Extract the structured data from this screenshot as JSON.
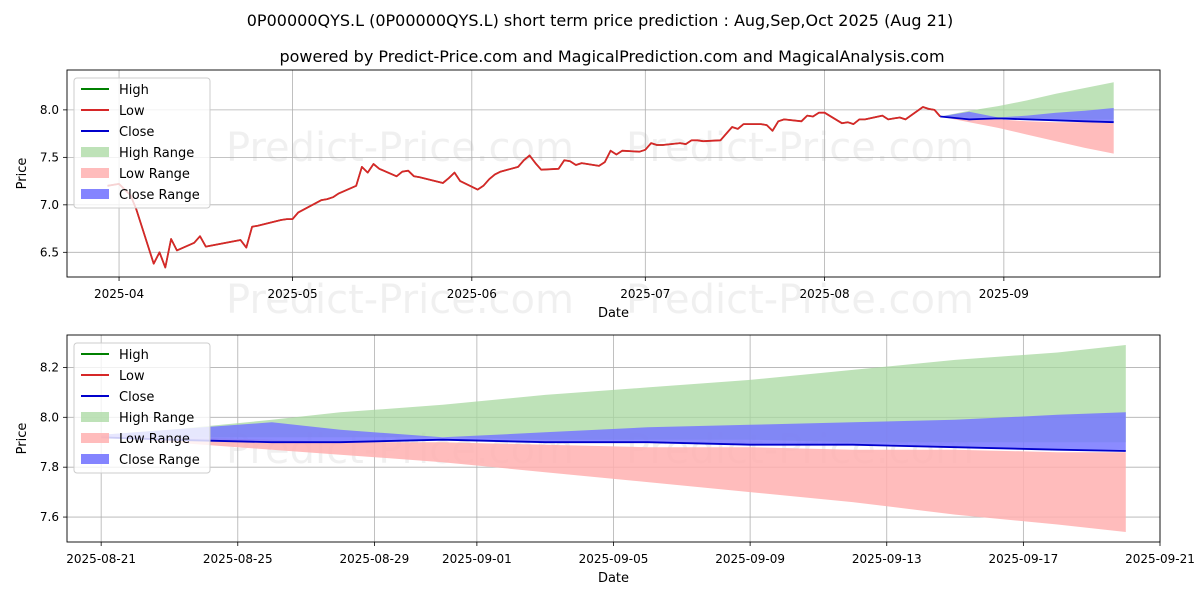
{
  "title": "0P00000QYS.L (0P00000QYS.L) short term price prediction : Aug,Sep,Oct 2025 (Aug 21)",
  "subtitle": "powered by Predict-Price.com and MagicalPrediction.com and MagicalAnalysis.com",
  "watermark": "Predict-Price.com",
  "colors": {
    "high": "#008000",
    "low": "#d62728",
    "close": "#0000cc",
    "high_range": "#a8d8a0",
    "low_range": "#ffb0b0",
    "close_range": "#7777ff",
    "grid": "#b0b0b0"
  },
  "chart_data": [
    {
      "type": "line",
      "xlabel": "Date",
      "ylabel": "Price",
      "xlim": [
        "2025-03-23",
        "2025-09-28"
      ],
      "ylim": [
        6.24,
        8.42
      ],
      "x_ticks": [
        "2025-04",
        "2025-05",
        "2025-06",
        "2025-07",
        "2025-08",
        "2025-09"
      ],
      "x_tick_dates": [
        "2025-04-01",
        "2025-05-01",
        "2025-06-01",
        "2025-07-01",
        "2025-08-01",
        "2025-09-01"
      ],
      "y_ticks": [
        "6.5",
        "7.0",
        "7.5",
        "8.0"
      ],
      "y_tick_values": [
        6.5,
        7.0,
        7.5,
        8.0
      ],
      "grid": true,
      "legend": "upper left",
      "legend_entries": [
        "High",
        "Low",
        "Close",
        "High Range",
        "Low Range",
        "Close Range"
      ],
      "history": {
        "x": [
          "2025-03-30",
          "2025-04-01",
          "2025-04-03",
          "2025-04-04",
          "2025-04-07",
          "2025-04-08",
          "2025-04-09",
          "2025-04-10",
          "2025-04-11",
          "2025-04-14",
          "2025-04-15",
          "2025-04-16",
          "2025-04-22",
          "2025-04-23",
          "2025-04-24",
          "2025-04-25",
          "2025-04-29",
          "2025-04-30",
          "2025-05-01",
          "2025-05-02",
          "2025-05-06",
          "2025-05-07",
          "2025-05-08",
          "2025-05-09",
          "2025-05-12",
          "2025-05-13",
          "2025-05-14",
          "2025-05-15",
          "2025-05-16",
          "2025-05-19",
          "2025-05-20",
          "2025-05-21",
          "2025-05-22",
          "2025-05-23",
          "2025-05-27",
          "2025-05-28",
          "2025-05-29",
          "2025-05-30",
          "2025-06-02",
          "2025-06-03",
          "2025-06-04",
          "2025-06-05",
          "2025-06-06",
          "2025-06-09",
          "2025-06-10",
          "2025-06-11",
          "2025-06-12",
          "2025-06-13",
          "2025-06-16",
          "2025-06-17",
          "2025-06-18",
          "2025-06-19",
          "2025-06-20",
          "2025-06-23",
          "2025-06-24",
          "2025-06-25",
          "2025-06-26",
          "2025-06-27",
          "2025-06-30",
          "2025-07-01",
          "2025-07-02",
          "2025-07-03",
          "2025-07-04",
          "2025-07-07",
          "2025-07-08",
          "2025-07-09",
          "2025-07-10",
          "2025-07-11",
          "2025-07-14",
          "2025-07-15",
          "2025-07-16",
          "2025-07-17",
          "2025-07-18",
          "2025-07-21",
          "2025-07-22",
          "2025-07-23",
          "2025-07-24",
          "2025-07-25",
          "2025-07-28",
          "2025-07-29",
          "2025-07-30",
          "2025-07-31",
          "2025-08-01",
          "2025-08-04",
          "2025-08-05",
          "2025-08-06",
          "2025-08-07",
          "2025-08-08",
          "2025-08-11",
          "2025-08-12",
          "2025-08-13",
          "2025-08-14",
          "2025-08-15",
          "2025-08-18",
          "2025-08-19",
          "2025-08-20",
          "2025-08-21"
        ],
        "y": [
          7.2,
          7.22,
          7.1,
          6.95,
          6.38,
          6.5,
          6.34,
          6.64,
          6.52,
          6.6,
          6.67,
          6.56,
          6.63,
          6.55,
          6.77,
          6.78,
          6.84,
          6.85,
          6.85,
          6.92,
          7.05,
          7.06,
          7.08,
          7.12,
          7.2,
          7.4,
          7.34,
          7.43,
          7.38,
          7.3,
          7.35,
          7.36,
          7.3,
          7.29,
          7.23,
          7.28,
          7.34,
          7.25,
          7.16,
          7.2,
          7.27,
          7.32,
          7.35,
          7.4,
          7.47,
          7.52,
          7.44,
          7.37,
          7.38,
          7.47,
          7.46,
          7.42,
          7.44,
          7.41,
          7.45,
          7.57,
          7.53,
          7.57,
          7.56,
          7.58,
          7.65,
          7.63,
          7.63,
          7.65,
          7.64,
          7.68,
          7.68,
          7.67,
          7.68,
          7.75,
          7.82,
          7.8,
          7.85,
          7.85,
          7.84,
          7.78,
          7.88,
          7.9,
          7.88,
          7.94,
          7.93,
          7.97,
          7.97,
          7.86,
          7.87,
          7.85,
          7.9,
          7.9,
          7.94,
          7.9,
          7.91,
          7.92,
          7.9,
          8.03,
          8.01,
          8.0,
          7.93
        ]
      },
      "forecast_x": [
        "2025-08-21",
        "2025-08-26",
        "2025-08-31",
        "2025-09-05",
        "2025-09-10",
        "2025-09-15",
        "2025-09-20"
      ],
      "close_forecast": [
        7.93,
        7.9,
        7.91,
        7.9,
        7.89,
        7.88,
        7.87
      ],
      "high_range": {
        "upper": [
          7.93,
          7.99,
          8.04,
          8.1,
          8.17,
          8.23,
          8.29
        ],
        "lower": [
          7.93,
          7.92,
          7.92,
          7.91,
          7.91,
          7.9,
          7.9
        ]
      },
      "low_range": {
        "upper": [
          7.93,
          7.91,
          7.9,
          7.88,
          7.87,
          7.87,
          7.86
        ],
        "lower": [
          7.93,
          7.87,
          7.81,
          7.74,
          7.67,
          7.6,
          7.54
        ]
      },
      "close_range": {
        "upper": [
          7.93,
          7.98,
          7.92,
          7.94,
          7.97,
          7.99,
          8.02
        ],
        "lower": [
          7.93,
          7.89,
          7.91,
          7.9,
          7.89,
          7.88,
          7.87
        ]
      }
    },
    {
      "type": "line",
      "xlabel": "Date",
      "ylabel": "Price",
      "xlim": [
        "2025-08-20",
        "2025-09-21"
      ],
      "ylim": [
        7.5,
        8.33
      ],
      "x_ticks": [
        "2025-08-21",
        "2025-08-25",
        "2025-08-29",
        "2025-09-01",
        "2025-09-05",
        "2025-09-09",
        "2025-09-13",
        "2025-09-17",
        "2025-09-21"
      ],
      "x_tick_dates": [
        "2025-08-21",
        "2025-08-25",
        "2025-08-29",
        "2025-09-01",
        "2025-09-05",
        "2025-09-09",
        "2025-09-13",
        "2025-09-17",
        "2025-09-21"
      ],
      "y_ticks": [
        "7.6",
        "7.8",
        "8.0",
        "8.2"
      ],
      "y_tick_values": [
        7.6,
        7.8,
        8.0,
        8.2
      ],
      "grid": true,
      "legend": "upper left",
      "legend_entries": [
        "High",
        "Low",
        "Close",
        "High Range",
        "Low Range",
        "Close Range"
      ],
      "forecast_x": [
        "2025-08-21",
        "2025-08-23",
        "2025-08-26",
        "2025-08-28",
        "2025-08-31",
        "2025-09-03",
        "2025-09-06",
        "2025-09-09",
        "2025-09-12",
        "2025-09-15",
        "2025-09-18",
        "2025-09-20"
      ],
      "close_forecast": [
        7.92,
        7.91,
        7.9,
        7.9,
        7.91,
        7.9,
        7.9,
        7.89,
        7.89,
        7.88,
        7.87,
        7.865
      ],
      "high_range": {
        "upper": [
          7.93,
          7.95,
          7.99,
          8.02,
          8.05,
          8.09,
          8.12,
          8.15,
          8.19,
          8.23,
          8.26,
          8.29
        ],
        "lower": [
          7.93,
          7.92,
          7.92,
          7.92,
          7.92,
          7.91,
          7.91,
          7.91,
          7.9,
          7.9,
          7.9,
          7.9
        ]
      },
      "low_range": {
        "upper": [
          7.93,
          7.92,
          7.91,
          7.9,
          7.9,
          7.89,
          7.88,
          7.88,
          7.87,
          7.87,
          7.86,
          7.86
        ],
        "lower": [
          7.93,
          7.9,
          7.87,
          7.85,
          7.82,
          7.78,
          7.74,
          7.7,
          7.66,
          7.61,
          7.57,
          7.54
        ]
      },
      "close_range": {
        "upper": [
          7.93,
          7.95,
          7.98,
          7.95,
          7.92,
          7.94,
          7.96,
          7.97,
          7.98,
          7.99,
          8.01,
          8.02
        ],
        "lower": [
          7.92,
          7.91,
          7.9,
          7.9,
          7.91,
          7.9,
          7.9,
          7.89,
          7.89,
          7.88,
          7.87,
          7.865
        ]
      }
    }
  ]
}
